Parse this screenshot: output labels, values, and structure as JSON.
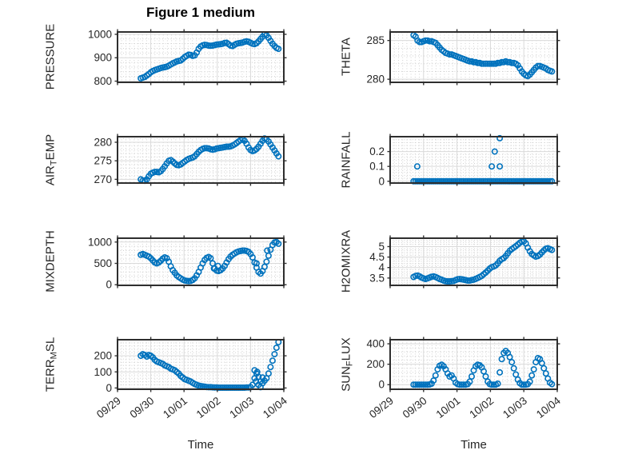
{
  "figure": {
    "title": "Figure 1 medium",
    "xlabel": "Time",
    "xtick_labels": [
      "09/29",
      "09/30",
      "10/01",
      "10/02",
      "10/03",
      "10/04"
    ],
    "marker_color": "#0072BD",
    "axis_color": "#333333",
    "box_color": "#2e2e2e",
    "grid_color": "#d9d9d9",
    "minor_grid_color": "#cccccc",
    "text_color": "#262626"
  },
  "chart_data": {
    "type": "scatter",
    "x_axis": "days since 09/29, ticks at integer days",
    "xlim": [
      0,
      5
    ],
    "time_days": [
      0.7,
      0.76,
      0.82,
      0.88,
      0.94,
      1.0,
      1.06,
      1.12,
      1.18,
      1.24,
      1.3,
      1.36,
      1.42,
      1.48,
      1.54,
      1.6,
      1.66,
      1.72,
      1.78,
      1.84,
      1.9,
      1.96,
      2.02,
      2.08,
      2.14,
      2.2,
      2.26,
      2.32,
      2.38,
      2.44,
      2.5,
      2.56,
      2.62,
      2.68,
      2.74,
      2.8,
      2.86,
      2.92,
      2.98,
      3.04,
      3.1,
      3.16,
      3.22,
      3.28,
      3.34,
      3.4,
      3.46,
      3.52,
      3.58,
      3.64,
      3.7,
      3.76,
      3.82,
      3.88,
      3.94,
      4.0,
      4.06,
      4.12,
      4.18,
      4.24,
      4.3,
      4.36,
      4.42,
      4.48,
      4.54,
      4.6,
      4.66,
      4.72,
      4.78,
      4.84
    ],
    "subplots": [
      {
        "name": "PRESSURE",
        "ylabel_pre": "PRESSURE",
        "ylabel_sub": "",
        "ylabel_post": "",
        "yticks": [
          800,
          900,
          1000
        ],
        "ytick_labels": [
          "800",
          "900",
          "1000"
        ],
        "ylim": [
          795,
          1010
        ],
        "y": [
          812,
          815,
          818,
          824,
          830,
          838,
          843,
          847,
          850,
          853,
          856,
          858,
          860,
          862,
          866,
          871,
          876,
          880,
          884,
          886,
          888,
          895,
          903,
          908,
          913,
          912,
          908,
          910,
          922,
          938,
          948,
          953,
          955,
          954,
          952,
          951,
          952,
          954,
          956,
          957,
          958,
          960,
          963,
          964,
          958,
          952,
          950,
          955,
          960,
          962,
          963,
          965,
          968,
          970,
          968,
          964,
          960,
          958,
          962,
          970,
          980,
          990,
          1000,
          996,
          985,
          972,
          960,
          950,
          942,
          938
        ]
      },
      {
        "name": "THETA",
        "ylabel_pre": "THETA",
        "ylabel_sub": "",
        "ylabel_post": "",
        "yticks": [
          280,
          285
        ],
        "ytick_labels": [
          "280",
          "285"
        ],
        "ylim": [
          279.6,
          286.1
        ],
        "y": [
          285.7,
          285.5,
          285.0,
          284.8,
          284.8,
          284.9,
          285.0,
          285.0,
          284.9,
          284.9,
          284.8,
          284.7,
          284.4,
          284.1,
          283.8,
          283.6,
          283.4,
          283.3,
          283.2,
          283.2,
          283.1,
          283.0,
          282.9,
          282.8,
          282.7,
          282.6,
          282.5,
          282.4,
          282.3,
          282.3,
          282.2,
          282.2,
          282.1,
          282.1,
          282.0,
          282.0,
          282.0,
          282.0,
          282.0,
          282.0,
          282.0,
          282.0,
          282.1,
          282.1,
          282.2,
          282.2,
          282.3,
          282.2,
          282.2,
          282.1,
          282.1,
          282.0,
          281.8,
          281.4,
          281.0,
          280.7,
          280.5,
          280.4,
          280.6,
          280.9,
          281.2,
          281.5,
          281.7,
          281.7,
          281.6,
          281.5,
          281.4,
          281.2,
          281.1,
          281.0
        ]
      },
      {
        "name": "AIR_TEMP",
        "ylabel_pre": "AIR",
        "ylabel_sub": "T",
        "ylabel_post": "EMP",
        "yticks": [
          270,
          275,
          280
        ],
        "ytick_labels": [
          "270",
          "275",
          "280"
        ],
        "ylim": [
          269,
          281.5
        ],
        "y": [
          270.0,
          269.7,
          269.6,
          270.0,
          270.8,
          271.5,
          271.8,
          272.0,
          272.0,
          271.9,
          272.2,
          272.8,
          273.5,
          274.3,
          275.0,
          275.2,
          274.8,
          274.3,
          273.9,
          273.8,
          274.0,
          274.4,
          274.8,
          275.2,
          275.5,
          275.7,
          275.9,
          276.2,
          276.8,
          277.4,
          277.9,
          278.2,
          278.4,
          278.4,
          278.3,
          278.1,
          278.0,
          278.1,
          278.3,
          278.4,
          278.5,
          278.6,
          278.7,
          278.8,
          278.8,
          278.9,
          279.1,
          279.4,
          279.8,
          280.2,
          280.6,
          280.8,
          280.4,
          279.6,
          278.6,
          277.9,
          277.6,
          277.8,
          278.2,
          278.8,
          279.6,
          280.4,
          281.0,
          280.8,
          280.2,
          279.4,
          278.6,
          277.8,
          277.0,
          276.2
        ]
      },
      {
        "name": "RAINFALL",
        "ylabel_pre": "RAINFALL",
        "ylabel_sub": "",
        "ylabel_post": "",
        "yticks": [
          0,
          0.1,
          0.2
        ],
        "ytick_labels": [
          "0",
          "0.1",
          "0.2"
        ],
        "ylim": [
          -0.012,
          0.3
        ],
        "y": [
          0,
          0,
          0,
          0,
          0,
          0,
          0,
          0,
          0,
          0,
          0,
          0,
          0,
          0,
          0,
          0,
          0,
          0,
          0,
          0,
          0,
          0,
          0,
          0,
          0,
          0,
          0,
          0,
          0,
          0,
          0,
          0,
          0,
          0,
          0,
          0,
          0,
          0,
          0,
          0,
          0,
          0,
          0,
          0,
          0,
          0,
          0,
          0,
          0,
          0,
          0,
          0,
          0,
          0,
          0,
          0,
          0,
          0,
          0,
          0,
          0,
          0,
          0,
          0,
          0,
          0,
          0,
          0,
          0,
          0
        ],
        "extra_points": [
          [
            0.81,
            0.1
          ],
          [
            3.04,
            0.1
          ],
          [
            3.28,
            0.1
          ],
          [
            3.13,
            0.2
          ],
          [
            3.28,
            0.29
          ]
        ]
      },
      {
        "name": "MIXDEPTH",
        "ylabel_pre": "MIXDEPTH",
        "ylabel_sub": "",
        "ylabel_post": "",
        "yticks": [
          0,
          500,
          1000
        ],
        "ytick_labels": [
          "0",
          "500",
          "1000"
        ],
        "ylim": [
          -15,
          1090
        ],
        "y": [
          700,
          720,
          700,
          680,
          660,
          620,
          570,
          520,
          500,
          520,
          560,
          610,
          640,
          620,
          540,
          430,
          340,
          280,
          220,
          180,
          150,
          120,
          100,
          90,
          85,
          90,
          110,
          150,
          220,
          300,
          400,
          500,
          580,
          630,
          650,
          620,
          500,
          380,
          330,
          320,
          340,
          380,
          440,
          520,
          600,
          660,
          700,
          730,
          760,
          780,
          790,
          800,
          800,
          790,
          770,
          720,
          640,
          520,
          400,
          300,
          260,
          320,
          420,
          540,
          680,
          820,
          930,
          990,
          1000,
          960
        ],
        "extra_points": [
          [
            2.9,
            380
          ],
          [
            3.02,
            440
          ],
          [
            4.18,
            500
          ],
          [
            4.5,
            800
          ]
        ]
      },
      {
        "name": "H2OMIXRA",
        "ylabel_pre": "H2OMIXRA",
        "ylabel_sub": "",
        "ylabel_post": "",
        "yticks": [
          3.5,
          4,
          4.5,
          5
        ],
        "ytick_labels": [
          "3.5",
          "4",
          "4.5",
          "5"
        ],
        "ylim": [
          3.15,
          5.4
        ],
        "y": [
          3.55,
          3.6,
          3.62,
          3.58,
          3.52,
          3.48,
          3.45,
          3.48,
          3.52,
          3.56,
          3.58,
          3.55,
          3.5,
          3.45,
          3.42,
          3.38,
          3.35,
          3.34,
          3.34,
          3.35,
          3.36,
          3.4,
          3.44,
          3.45,
          3.44,
          3.42,
          3.4,
          3.38,
          3.38,
          3.4,
          3.42,
          3.46,
          3.5,
          3.55,
          3.6,
          3.68,
          3.76,
          3.85,
          3.95,
          4.02,
          4.05,
          4.1,
          4.2,
          4.32,
          4.4,
          4.45,
          4.55,
          4.68,
          4.8,
          4.88,
          4.95,
          5.02,
          5.1,
          5.18,
          5.24,
          5.25,
          5.15,
          4.95,
          4.78,
          4.65,
          4.58,
          4.52,
          4.55,
          4.62,
          4.72,
          4.82,
          4.9,
          4.92,
          4.88,
          4.84
        ]
      },
      {
        "name": "TERR_MSL",
        "ylabel_pre": "TERR",
        "ylabel_sub": "M",
        "ylabel_post": "SL",
        "yticks": [
          0,
          100,
          200
        ],
        "ytick_labels": [
          "0",
          "100",
          "200"
        ],
        "ylim": [
          -8,
          300
        ],
        "y": [
          200,
          210,
          205,
          195,
          205,
          200,
          190,
          175,
          165,
          160,
          155,
          150,
          140,
          135,
          130,
          120,
          115,
          110,
          100,
          90,
          75,
          65,
          55,
          50,
          45,
          40,
          32,
          25,
          20,
          15,
          12,
          10,
          8,
          6,
          5,
          5,
          4,
          3,
          3,
          2,
          2,
          2,
          2,
          2,
          2,
          2,
          2,
          2,
          2,
          2,
          2,
          2,
          2,
          3,
          3,
          5,
          20,
          60,
          90,
          70,
          40,
          30,
          45,
          60,
          90,
          130,
          170,
          210,
          250,
          285
        ],
        "extra_points": [
          [
            4.12,
            110
          ],
          [
            4.16,
            40
          ],
          [
            4.2,
            100
          ],
          [
            4.24,
            20
          ],
          [
            4.3,
            5
          ],
          [
            4.36,
            65
          ]
        ]
      },
      {
        "name": "SUN_FLUX",
        "ylabel_pre": "SUN",
        "ylabel_sub": "F",
        "ylabel_post": "LUX",
        "yticks": [
          0,
          200,
          400
        ],
        "ytick_labels": [
          "0",
          "200",
          "400"
        ],
        "ylim": [
          -45,
          440
        ],
        "y": [
          0,
          0,
          0,
          0,
          0,
          0,
          0,
          0,
          2,
          10,
          40,
          90,
          150,
          185,
          195,
          180,
          150,
          110,
          80,
          90,
          60,
          20,
          5,
          0,
          0,
          0,
          0,
          5,
          30,
          80,
          140,
          180,
          195,
          190,
          170,
          130,
          80,
          30,
          5,
          0,
          0,
          0,
          10,
          120,
          250,
          310,
          330,
          310,
          270,
          220,
          160,
          100,
          50,
          15,
          0,
          0,
          0,
          5,
          30,
          90,
          150,
          220,
          260,
          250,
          210,
          160,
          110,
          60,
          20,
          5
        ]
      }
    ]
  }
}
